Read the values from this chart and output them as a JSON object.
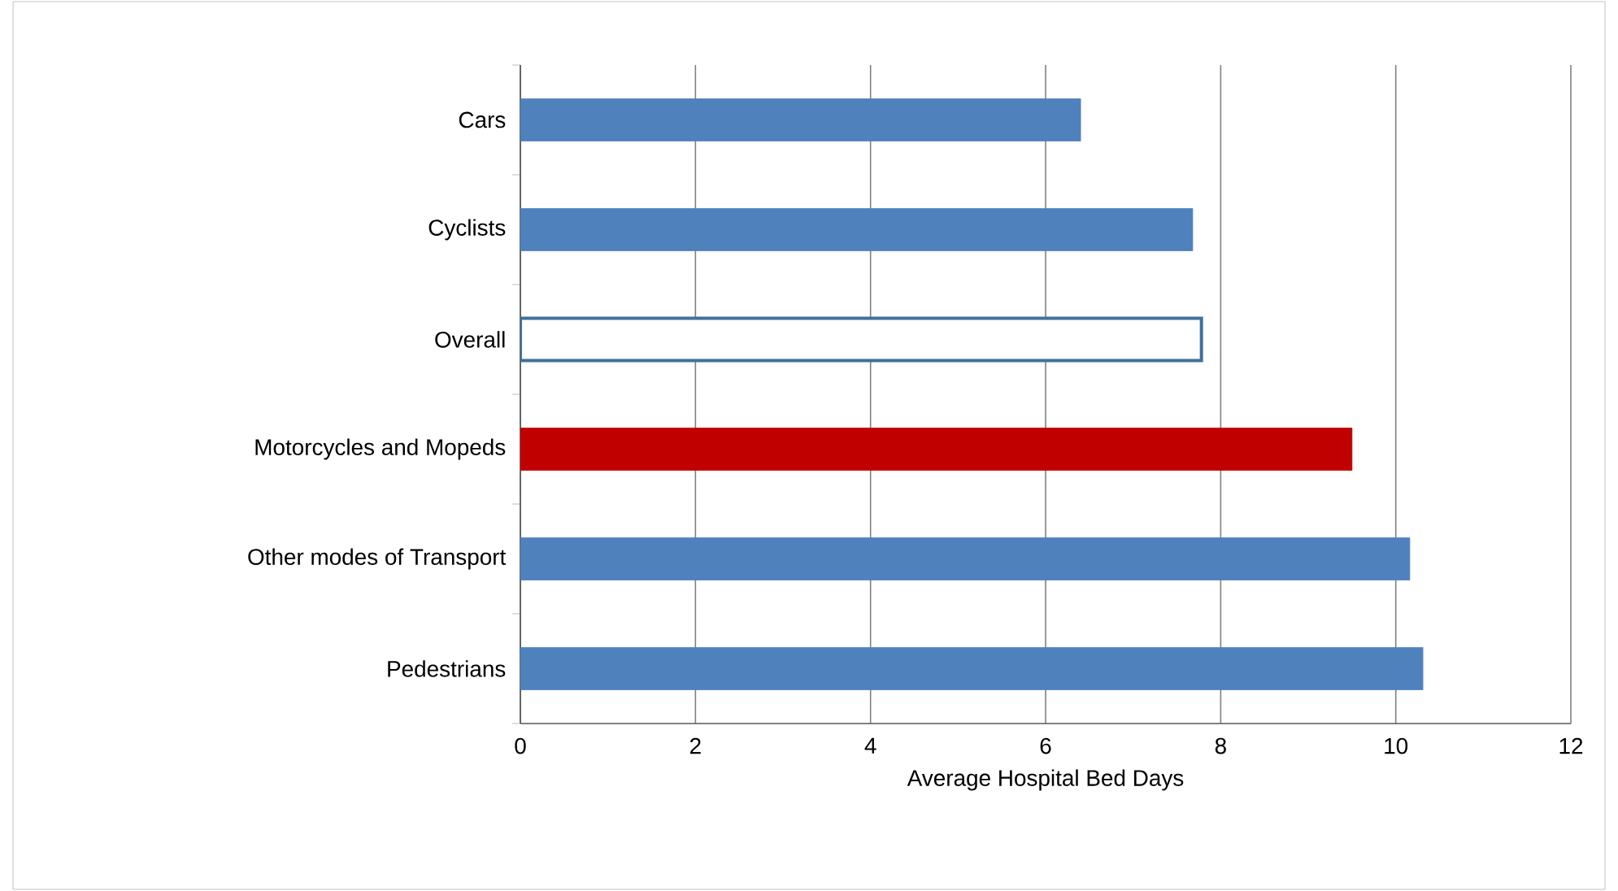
{
  "chart_data": {
    "type": "bar",
    "orientation": "horizontal",
    "xlabel": "Average Hospital Bed Days",
    "categories": [
      "Cars",
      "Cyclists",
      "Overall",
      "Motorcycles and Mopeds",
      "Other modes of Transport",
      "Pedestrians"
    ],
    "values": [
      6.4,
      7.68,
      7.78,
      9.5,
      10.16,
      10.31
    ],
    "colors": [
      "#4f81bd",
      "#4f81bd",
      "#ffffff",
      "#c00000",
      "#4f81bd",
      "#4f81bd"
    ],
    "xlim": [
      0,
      12
    ],
    "xticks": [
      0,
      2,
      4,
      6,
      8,
      10,
      12
    ],
    "grid": "x"
  }
}
